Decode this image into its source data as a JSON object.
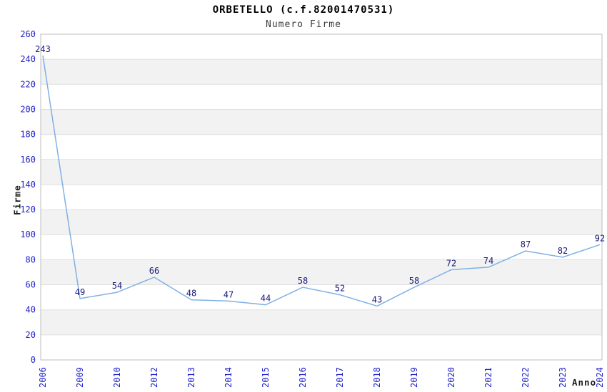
{
  "page": {
    "title": "ORBETELLO (c.f.82001470531)",
    "subtitle": "Numero Firme"
  },
  "chart_data": {
    "type": "line",
    "title": "ORBETELLO (c.f.82001470531)",
    "subtitle": "Numero Firme",
    "xlabel": "Anno",
    "ylabel": "Firme",
    "categories": [
      "2006",
      "2009",
      "2010",
      "2012",
      "2013",
      "2014",
      "2015",
      "2016",
      "2017",
      "2018",
      "2019",
      "2020",
      "2021",
      "2022",
      "2023",
      "2024"
    ],
    "series": [
      {
        "name": "Numero Firme",
        "values": [
          243,
          49,
          54,
          66,
          48,
          47,
          44,
          58,
          52,
          43,
          58,
          72,
          74,
          87,
          82,
          92
        ]
      }
    ],
    "ylim": [
      0,
      260
    ],
    "y_tick_step": 20,
    "x_tick_rotation": -90,
    "grid": "alternating-horizontal-bands",
    "legend": "none",
    "data_labels": true,
    "markers": false,
    "colors": {
      "line": "#7fb0e6",
      "tick_label": "#2222cc",
      "data_label": "#181878",
      "band": "#f2f2f2",
      "gridline": "#e0e0e0",
      "plot_border": "#bcbcbc",
      "title": "#000000",
      "subtitle": "#3c3c3c",
      "axis_title": "#1c1c1c",
      "background": "#ffffff"
    }
  }
}
